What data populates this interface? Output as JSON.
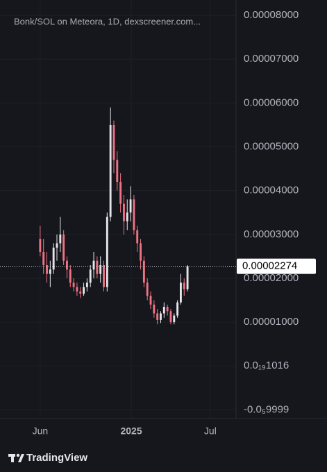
{
  "chart_data": {
    "type": "candlestick",
    "title": "Bonk/SOL on Meteora, 1D, dexscreener.com...",
    "x": [
      0,
      1,
      2,
      3,
      4,
      5,
      6,
      7,
      8,
      9,
      10,
      11,
      12,
      13,
      14,
      15,
      16,
      17,
      18,
      19,
      20,
      21,
      22,
      23,
      24,
      25,
      26,
      27,
      28,
      29,
      30,
      31,
      32,
      33,
      34,
      35,
      36,
      37,
      38,
      39,
      40,
      41,
      42,
      43,
      44
    ],
    "open": [
      2.9e-05,
      2.6e-05,
      2.3e-05,
      2.1e-05,
      2.2e-05,
      2.7e-05,
      2.8e-05,
      3e-05,
      2.4e-05,
      2.2e-05,
      1.9e-05,
      1.8e-05,
      1.7e-05,
      1.65e-05,
      1.8e-05,
      1.9e-05,
      2.2e-05,
      2.4e-05,
      2.1e-05,
      2.3e-05,
      1.8e-05,
      3.4e-05,
      5.5e-05,
      4.7e-05,
      4.2e-05,
      3.7e-05,
      3.3e-05,
      3.5e-05,
      3.8e-05,
      3.1e-05,
      2.8e-05,
      2.4e-05,
      1.9e-05,
      1.6e-05,
      1.4e-05,
      1.2e-05,
      1.05e-05,
      1.2e-05,
      1.35e-05,
      1.25e-05,
      1e-05,
      1.15e-05,
      1.45e-05,
      1.9e-05,
      1.75e-05
    ],
    "high": [
      3.2e-05,
      2.9e-05,
      2.6e-05,
      2.4e-05,
      2.8e-05,
      3e-05,
      3.4e-05,
      3.1e-05,
      2.5e-05,
      2.3e-05,
      2e-05,
      1.9e-05,
      1.8e-05,
      1.9e-05,
      2e-05,
      2.3e-05,
      2.6e-05,
      2.5e-05,
      2.5e-05,
      2.4e-05,
      3.5e-05,
      5.9e-05,
      5.6e-05,
      4.9e-05,
      4.4e-05,
      3.9e-05,
      3.8e-05,
      4.1e-05,
      3.9e-05,
      3.2e-05,
      2.9e-05,
      2.5e-05,
      2e-05,
      1.7e-05,
      1.5e-05,
      1.3e-05,
      1.25e-05,
      1.45e-05,
      1.4e-05,
      1.3e-05,
      1.2e-05,
      1.5e-05,
      2.1e-05,
      2e-05,
      2.3e-05
    ],
    "low": [
      2.5e-05,
      2.1e-05,
      1.9e-05,
      1.8e-05,
      2.1e-05,
      2.4e-05,
      2.6e-05,
      2.3e-05,
      2e-05,
      1.8e-05,
      1.7e-05,
      1.6e-05,
      1.55e-05,
      1.6e-05,
      1.7e-05,
      1.8e-05,
      2e-05,
      2e-05,
      1.9e-05,
      1.7e-05,
      1.7e-05,
      3.3e-05,
      4.4e-05,
      4e-05,
      3.5e-05,
      3e-05,
      3.1e-05,
      3.3e-05,
      3e-05,
      2.6e-05,
      2.2e-05,
      1.8e-05,
      1.5e-05,
      1.3e-05,
      1.1e-05,
      9.5e-06,
      9.8e-06,
      1.1e-05,
      1.15e-05,
      9.5e-06,
      9.5e-06,
      1.1e-05,
      1.4e-05,
      1.6e-05,
      1.7e-05
    ],
    "close": [
      2.6e-05,
      2.3e-05,
      2.1e-05,
      2.2e-05,
      2.7e-05,
      2.8e-05,
      3e-05,
      2.4e-05,
      2.2e-05,
      1.9e-05,
      1.8e-05,
      1.7e-05,
      1.65e-05,
      1.8e-05,
      1.9e-05,
      2.2e-05,
      2.4e-05,
      2.1e-05,
      2.3e-05,
      1.8e-05,
      3.4e-05,
      5.5e-05,
      4.7e-05,
      4.2e-05,
      3.7e-05,
      3.3e-05,
      3.5e-05,
      3.8e-05,
      3.1e-05,
      2.8e-05,
      2.4e-05,
      1.9e-05,
      1.6e-05,
      1.4e-05,
      1.2e-05,
      1.05e-05,
      1.2e-05,
      1.35e-05,
      1.25e-05,
      1e-05,
      1.15e-05,
      1.45e-05,
      1.9e-05,
      1.75e-05,
      2.274e-05
    ],
    "up_color": "#e6e6ea",
    "down_color": "#ef7383",
    "xlim": [
      -12,
      58.5
    ],
    "xticks": [
      {
        "value": 0,
        "label": "Jun"
      },
      {
        "value": 27.2,
        "label": "2025"
      },
      {
        "value": 50.8,
        "label": "Jul"
      }
    ],
    "ylim": [
      -1.2e-05,
      8.35e-05
    ],
    "yticks": [
      {
        "value": 8e-05,
        "label": "0.00008000"
      },
      {
        "value": 7e-05,
        "label": "0.00007000"
      },
      {
        "value": 6e-05,
        "label": "0.00006000"
      },
      {
        "value": 5e-05,
        "label": "0.00005000"
      },
      {
        "value": 4e-05,
        "label": "0.00004000"
      },
      {
        "value": 3e-05,
        "label": "0.00003000"
      },
      {
        "value": 2e-05,
        "label": "0.00002000"
      },
      {
        "value": 1e-05,
        "label": "0.00001000"
      },
      {
        "value": 1.016e-23,
        "label": "0.0₁₉1016"
      },
      {
        "value": -9.999e-06,
        "label": "-0.0₅9999"
      }
    ],
    "last_price": {
      "value": 2.274e-05,
      "label": "0.00002274"
    },
    "grid": true
  },
  "footer": {
    "brand": "TradingView"
  }
}
